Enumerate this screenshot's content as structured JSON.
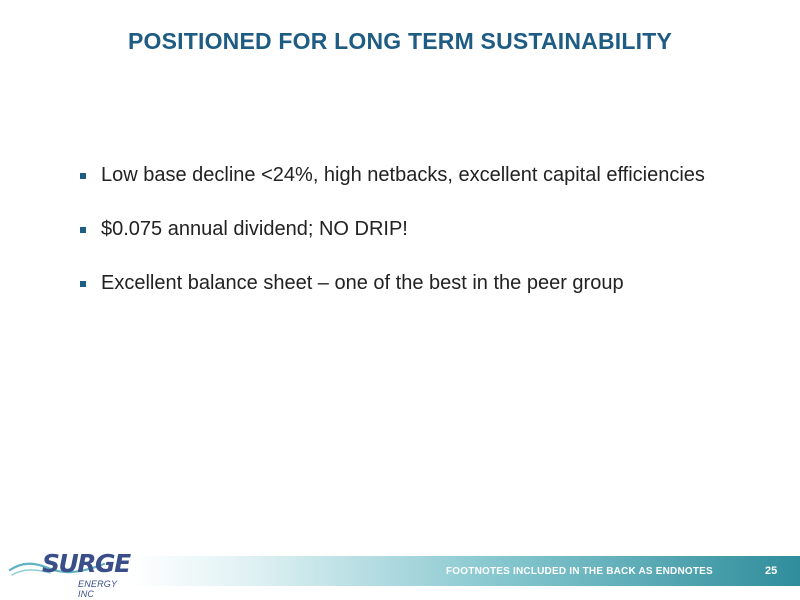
{
  "slide": {
    "title": "POSITIONED FOR LONG TERM SUSTAINABILITY",
    "bullets": [
      {
        "text": "Low base decline <24%, high netbacks, excellent capital efficiencies"
      },
      {
        "text": "$0.075 annual dividend; NO DRIP!"
      },
      {
        "text": "Excellent balance sheet – one of the best in the peer group"
      }
    ]
  },
  "footer": {
    "note": "FOOTNOTES INCLUDED IN THE BACK AS ENDNOTES",
    "page_number": "25"
  },
  "logo": {
    "name": "SURGE",
    "subtitle": "ENERGY INC",
    "swoosh_icon": "swoosh-icon"
  },
  "colors": {
    "title": "#1f5c84",
    "body_text": "#222222",
    "footer_band_end": "#2f8d9b",
    "logo": "#3a4f8a",
    "swoosh": "#5fb3c2"
  }
}
